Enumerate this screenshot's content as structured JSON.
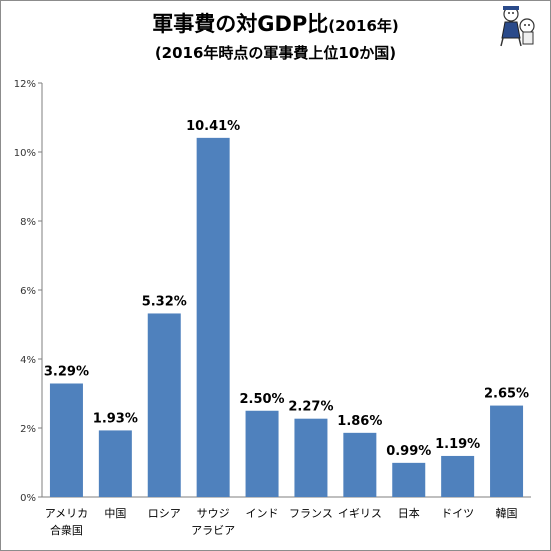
{
  "chart_data": {
    "type": "bar",
    "title": "軍事費の対GDP比",
    "title_suffix": "(2016年)",
    "subtitle": "(2016年時点の軍事費上位10か国)",
    "categories": [
      [
        "アメリカ",
        "合衆国"
      ],
      [
        "中国"
      ],
      [
        "ロシア"
      ],
      [
        "サウジ",
        "アラビア"
      ],
      [
        "インド"
      ],
      [
        "フランス"
      ],
      [
        "イギリス"
      ],
      [
        "日本"
      ],
      [
        "ドイツ"
      ],
      [
        "韓国"
      ]
    ],
    "values": [
      3.29,
      1.93,
      5.32,
      10.41,
      2.5,
      2.27,
      1.86,
      0.99,
      1.19,
      2.65
    ],
    "data_labels": [
      "3.29%",
      "1.93%",
      "5.32%",
      "10.41%",
      "2.50%",
      "2.27%",
      "1.86%",
      "0.99%",
      "1.19%",
      "2.65%"
    ],
    "ylim": [
      0,
      12
    ],
    "yticks": [
      0,
      2,
      4,
      6,
      8,
      10,
      12
    ],
    "ytick_labels": [
      "0%",
      "2%",
      "4%",
      "6%",
      "8%",
      "10%",
      "12%"
    ],
    "xlabel": "",
    "ylabel": "",
    "grid": false,
    "bar_color": "#4f81bd"
  },
  "mascot": {
    "icon": "mascot-icon"
  }
}
